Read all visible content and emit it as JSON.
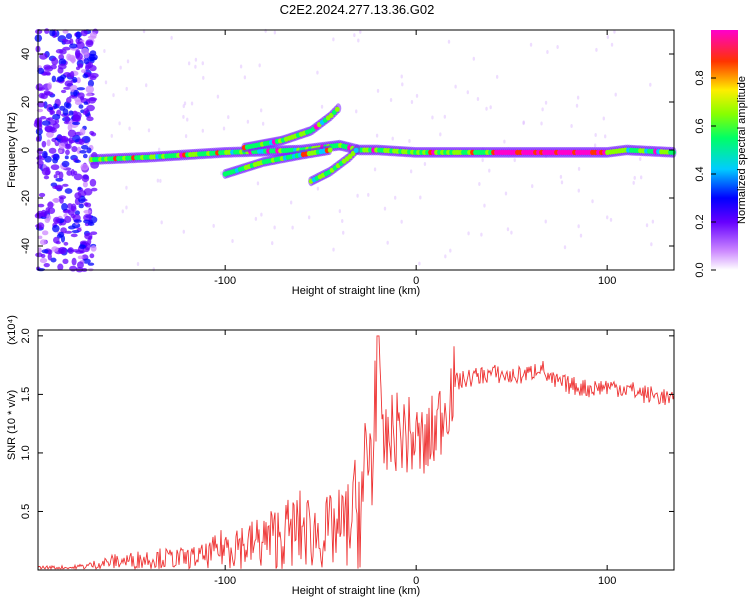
{
  "title": "C2E2.2024.277.13.36.G02",
  "chart_data": [
    {
      "type": "heatmap",
      "xlabel": "Height of straight line (km)",
      "ylabel": "Frequency (Hz)",
      "xlim": [
        -198,
        135
      ],
      "ylim": [
        -50,
        50
      ],
      "x_ticks": [
        -100,
        0,
        100
      ],
      "x_tick_labels": [
        "-100",
        "0",
        "100"
      ],
      "y_ticks": [
        -40,
        -20,
        0,
        20,
        40
      ],
      "y_tick_labels": [
        "-40",
        "-20",
        "0",
        "20",
        "40"
      ],
      "colorbar": {
        "label": "Normalized spectral amplitude",
        "range": [
          0,
          1
        ],
        "ticks": [
          0.0,
          0.2,
          0.4,
          0.6,
          0.8
        ],
        "tick_labels": [
          "0.0",
          "0.2",
          "0.4",
          "0.6",
          "0.8"
        ],
        "colormap": [
          "#ffffff",
          "#9900ff",
          "#0000ff",
          "#00ffff",
          "#00ff00",
          "#ffff00",
          "#ff0000",
          "#ff00ff"
        ]
      },
      "ridges": [
        {
          "name": "main",
          "points": [
            [
              -170,
              -4
            ],
            [
              -140,
              -3
            ],
            [
              -120,
              -2
            ],
            [
              -100,
              -1
            ],
            [
              -60,
              0
            ],
            [
              -40,
              2
            ],
            [
              -30,
              0
            ],
            [
              -20,
              0
            ],
            [
              0,
              -1
            ],
            [
              20,
              -1
            ],
            [
              60,
              -1
            ],
            [
              100,
              -1
            ],
            [
              110,
              0
            ],
            [
              135,
              -1
            ]
          ]
        },
        {
          "name": "branch-upper",
          "points": [
            [
              -90,
              1
            ],
            [
              -70,
              4
            ],
            [
              -55,
              8
            ],
            [
              -45,
              14
            ],
            [
              -40,
              18
            ]
          ]
        },
        {
          "name": "branch-lower",
          "points": [
            [
              -100,
              -10
            ],
            [
              -80,
              -5
            ],
            [
              -60,
              -2
            ],
            [
              -45,
              0
            ]
          ]
        },
        {
          "name": "branch-low",
          "points": [
            [
              -55,
              -13
            ],
            [
              -45,
              -9
            ],
            [
              -35,
              -3
            ],
            [
              -30,
              1
            ]
          ]
        }
      ]
    },
    {
      "type": "line",
      "xlabel": "Height of straight line (km)",
      "ylabel": "SNR (10 * v/v)",
      "y_scale_note": "(x10⁴)",
      "xlim": [
        -198,
        135
      ],
      "ylim": [
        0,
        2.05
      ],
      "x_ticks": [
        -100,
        0,
        100
      ],
      "x_tick_labels": [
        "-100",
        "0",
        "100"
      ],
      "y_ticks": [
        0.5,
        1.0,
        1.5,
        2.0
      ],
      "y_tick_labels": [
        "0.5",
        "1.0",
        "1.5",
        "2.0"
      ],
      "color": "#ee3333",
      "series": [
        {
          "x": [
            -198,
            -180,
            -170,
            -160,
            -150,
            -140,
            -130,
            -120,
            -110,
            -100,
            -95,
            -90,
            -80,
            -70,
            -60,
            -50,
            -40,
            -35,
            -30,
            -25,
            -22,
            -20,
            -18,
            -15,
            -10,
            -5,
            0,
            5,
            10,
            15,
            20,
            30,
            40,
            50,
            60,
            65,
            70,
            80,
            90,
            100,
            110,
            120,
            130,
            135
          ],
          "y": [
            0.02,
            0.02,
            0.04,
            0.07,
            0.08,
            0.1,
            0.1,
            0.1,
            0.12,
            0.2,
            0.25,
            0.2,
            0.25,
            0.3,
            0.35,
            0.3,
            0.35,
            0.4,
            0.55,
            0.8,
            1.2,
            2.0,
            1.0,
            1.1,
            1.2,
            1.15,
            1.1,
            1.05,
            1.2,
            1.4,
            1.6,
            1.65,
            1.68,
            1.65,
            1.68,
            1.75,
            1.62,
            1.58,
            1.55,
            1.57,
            1.55,
            1.5,
            1.48,
            1.43
          ]
        }
      ]
    }
  ]
}
